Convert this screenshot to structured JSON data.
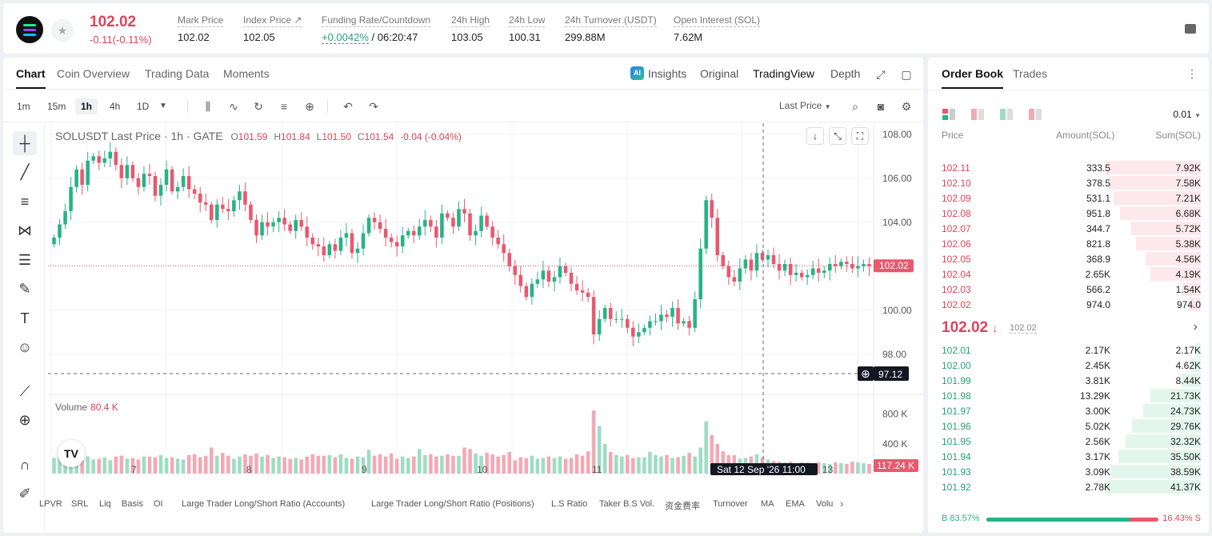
{
  "header": {
    "last_price": "102.02",
    "change": "-0.11(-0.11%)",
    "stats": [
      {
        "label": "Mark Price",
        "value": "102.02"
      },
      {
        "label": "Index Price",
        "value": "102.05"
      },
      {
        "label": "Funding Rate/Countdown",
        "value_green": "+0.0042%",
        "value_rest": "/ 06:20:47"
      },
      {
        "label": "24h High",
        "value": "103.05"
      },
      {
        "label": "24h Low",
        "value": "100.31"
      },
      {
        "label": "24h Turnover (USDT)",
        "value": "299.88M"
      },
      {
        "label": "Open Interest (SOL)",
        "value": "7.62M"
      }
    ]
  },
  "chart_tabs": [
    "Chart",
    "Coin Overview",
    "Trading Data",
    "Moments"
  ],
  "view_tabs": {
    "insights": "Insights",
    "ai_badge": "AI",
    "original": "Original",
    "tradingview": "TradingView",
    "depth": "Depth"
  },
  "timeframes": [
    "1m",
    "15m",
    "1h",
    "4h",
    "1D"
  ],
  "last_price_select": "Last Price",
  "legend": {
    "symbol": "SOLUSDT Last Price · 1h · GATE",
    "o": "O",
    "o_val": "101.59",
    "h": "H",
    "h_val": "101.84",
    "l": "L",
    "l_val": "101.50",
    "c": "C",
    "c_val": "101.54",
    "chg": "-0.04 (-0.04%)"
  },
  "volume_legend": {
    "label": "Volume",
    "value": "80.4 K"
  },
  "tv_logo": "TV",
  "indicators": [
    "LPVR",
    "SRL",
    "Liq",
    "Basis",
    "OI",
    "Large Trader Long/Short Ratio (Accounts)",
    "Large Trader Long/Short Ratio (Positions)",
    "L.S Ratio",
    "Taker B.S Vol.",
    "资金费率",
    "Turnover",
    "MA",
    "EMA",
    "Volu"
  ],
  "colors": {
    "up": "#27b386",
    "down": "#e8596f",
    "up_vol": "#9fdcc4",
    "down_vol": "#f2a9b6"
  },
  "chart_data": {
    "type": "candlestick",
    "price_axis": {
      "ticks": [
        "108.00",
        "106.00",
        "104.00",
        "102.00",
        "100.00",
        "98.00"
      ],
      "min": 96.5,
      "max": 108.5
    },
    "volume_axis": {
      "ticks": [
        "800 K",
        "400 K"
      ],
      "max": 1000
    },
    "x_labels": [
      "7",
      "8",
      "9",
      "10",
      "11",
      "13"
    ],
    "last_price_label": "102.02",
    "crosshair_price": "97.12",
    "volume_label": "117.24 K",
    "crosshair_time": "Sat 12 Sep '26",
    "crosshair_hour": "11:00",
    "closes": [
      103.3,
      103.9,
      104.5,
      105.6,
      106.4,
      105.7,
      106.8,
      107.0,
      106.7,
      106.9,
      107.2,
      106.6,
      106.0,
      106.6,
      106.0,
      105.6,
      106.2,
      106.1,
      105.2,
      105.7,
      106.4,
      105.4,
      105.6,
      106.1,
      105.5,
      105.3,
      104.9,
      104.8,
      104.1,
      104.8,
      104.6,
      104.5,
      105.0,
      105.4,
      104.8,
      104.1,
      103.4,
      104.0,
      103.8,
      104.0,
      104.2,
      103.9,
      103.6,
      104.1,
      103.8,
      103.3,
      103.0,
      102.9,
      102.5,
      103.0,
      102.7,
      103.3,
      103.5,
      102.6,
      102.8,
      103.5,
      104.2,
      104.0,
      103.7,
      103.3,
      103.1,
      102.9,
      103.4,
      103.6,
      103.4,
      103.8,
      104.1,
      103.8,
      103.3,
      104.4,
      104.2,
      103.8,
      104.6,
      104.4,
      103.4,
      103.6,
      104.3,
      103.8,
      103.3,
      103.0,
      102.6,
      102.0,
      101.6,
      101.1,
      100.6,
      101.2,
      101.4,
      101.8,
      101.3,
      101.5,
      102.0,
      101.7,
      101.2,
      100.9,
      100.8,
      100.6,
      98.9,
      99.6,
      100.1,
      99.6,
      99.6,
      99.6,
      99.2,
      98.8,
      99.0,
      99.2,
      99.5,
      99.5,
      99.8,
      99.7,
      100.1,
      99.4,
      99.5,
      99.2,
      100.5,
      102.8,
      105.0,
      104.2,
      102.5,
      102.0,
      101.5,
      101.3,
      101.9,
      102.3,
      101.8,
      102.6,
      102.3,
      102.5,
      102.1,
      101.8,
      102.1,
      101.6,
      101.7,
      101.5,
      101.6,
      101.9,
      101.7,
      101.8,
      102.1,
      102.0,
      102.2,
      102.1,
      101.9,
      102.0,
      102.1,
      102.0
    ],
    "volumes": [
      210,
      240,
      300,
      260,
      220,
      180,
      230,
      190,
      200,
      220,
      180,
      230,
      240,
      200,
      210,
      190,
      230,
      230,
      220,
      250,
      210,
      220,
      200,
      190,
      250,
      260,
      220,
      240,
      350,
      240,
      280,
      240,
      200,
      230,
      260,
      240,
      270,
      230,
      250,
      210,
      230,
      220,
      200,
      210,
      190,
      230,
      260,
      240,
      240,
      250,
      220,
      260,
      210,
      200,
      230,
      220,
      320,
      240,
      260,
      230,
      270,
      200,
      230,
      210,
      230,
      330,
      250,
      260,
      230,
      240,
      260,
      240,
      240,
      350,
      330,
      270,
      240,
      280,
      260,
      230,
      250,
      290,
      180,
      220,
      210,
      240,
      200,
      210,
      230,
      210,
      230,
      200,
      210,
      260,
      240,
      300,
      850,
      640,
      400,
      290,
      250,
      230,
      250,
      210,
      220,
      220,
      290,
      250,
      230,
      250,
      210,
      220,
      240,
      280,
      230,
      350,
      700,
      520,
      400,
      300,
      250,
      250,
      200,
      210,
      230,
      260,
      220,
      190,
      170,
      160,
      150,
      160,
      140,
      150,
      150,
      140,
      150,
      140,
      130,
      150,
      140,
      130,
      160,
      150,
      140,
      130
    ]
  },
  "orderbook": {
    "tabs": [
      "Order Book",
      "Trades"
    ],
    "precision": "0.01",
    "headers": {
      "price": "Price",
      "amount": "Amount(SOL)",
      "sum": "Sum(SOL)"
    },
    "asks": [
      {
        "price": "102.11",
        "amount": "333.5",
        "sum": "7.92K"
      },
      {
        "price": "102.10",
        "amount": "378.5",
        "sum": "7.58K"
      },
      {
        "price": "102.09",
        "amount": "531.1",
        "sum": "7.21K"
      },
      {
        "price": "102.08",
        "amount": "951.8",
        "sum": "6.68K"
      },
      {
        "price": "102.07",
        "amount": "344.7",
        "sum": "5.72K"
      },
      {
        "price": "102.06",
        "amount": "821.8",
        "sum": "5.38K"
      },
      {
        "price": "102.05",
        "amount": "368.9",
        "sum": "4.56K"
      },
      {
        "price": "102.04",
        "amount": "2.65K",
        "sum": "4.19K"
      },
      {
        "price": "102.03",
        "amount": "566.2",
        "sum": "1.54K"
      },
      {
        "price": "102.02",
        "amount": "974.0",
        "sum": "974.0"
      }
    ],
    "mid_price": "102.02",
    "mid_arrow": "↓",
    "mid_mark": "102.02",
    "bids": [
      {
        "price": "102.01",
        "amount": "2.17K",
        "sum": "2.17K"
      },
      {
        "price": "102.00",
        "amount": "2.45K",
        "sum": "4.62K"
      },
      {
        "price": "101.99",
        "amount": "3.81K",
        "sum": "8.44K"
      },
      {
        "price": "101.98",
        "amount": "13.29K",
        "sum": "21.73K"
      },
      {
        "price": "101.97",
        "amount": "3.00K",
        "sum": "24.73K"
      },
      {
        "price": "101.96",
        "amount": "5.02K",
        "sum": "29.76K"
      },
      {
        "price": "101.95",
        "amount": "2.56K",
        "sum": "32.32K"
      },
      {
        "price": "101.94",
        "amount": "3.17K",
        "sum": "35.50K"
      },
      {
        "price": "101.93",
        "amount": "3.09K",
        "sum": "38.59K"
      },
      {
        "price": "101.92",
        "amount": "2.78K",
        "sum": "41.37K"
      }
    ],
    "buy_ratio": "B 83.57%",
    "sell_ratio": "16.43% S",
    "buy_fraction": 0.8357
  }
}
